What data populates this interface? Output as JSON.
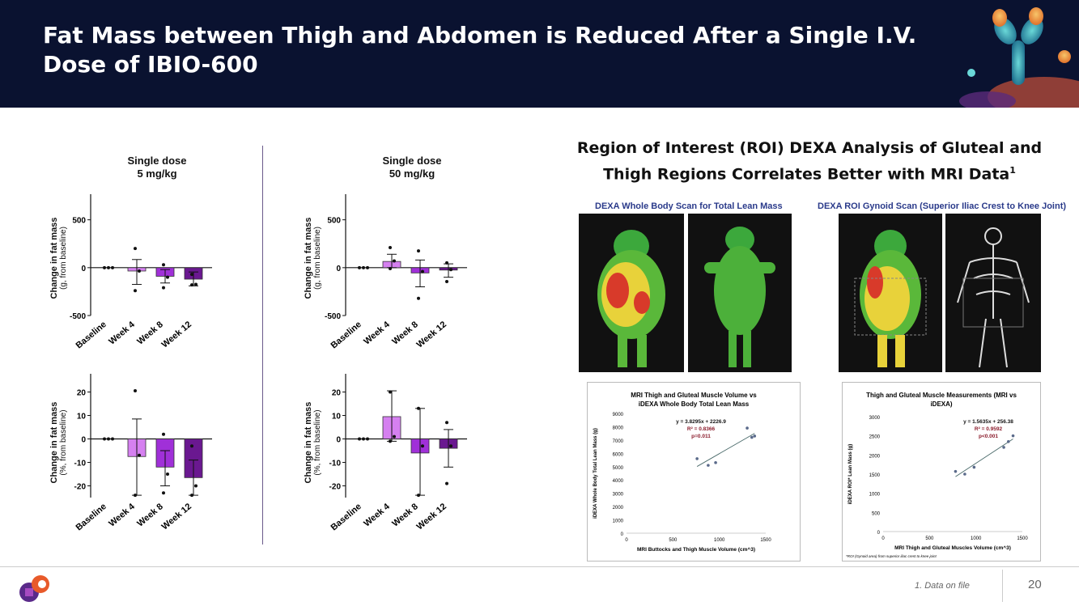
{
  "header": {
    "title": "Fat Mass between Thigh and Abdomen is Reduced After a Single I.V. Dose of IBIO-600"
  },
  "panels": {
    "left_title": "Single dose\n5 mg/kg",
    "right_title": "Single dose\n50 mg/kg",
    "ylabel_abs_1": "Change in fat mass",
    "ylabel_abs_2": "(g, from baseline)",
    "ylabel_pct_1": "Change in fat mass",
    "ylabel_pct_2": "(%, from baseline)"
  },
  "chart_data": [
    {
      "type": "bar",
      "title": "Single dose 5 mg/kg",
      "ylabel": "Change in fat mass (g, from baseline)",
      "categories": [
        "Baseline",
        "Week 4",
        "Week 8",
        "Week 12"
      ],
      "values": [
        0,
        -35,
        -90,
        -120
      ],
      "err": [
        [
          0,
          0
        ],
        [
          -175,
          85
        ],
        [
          -160,
          -20
        ],
        [
          -190,
          -45
        ]
      ],
      "points": [
        [
          0,
          0,
          0
        ],
        [
          200,
          -35,
          -240
        ],
        [
          30,
          -100,
          -210
        ],
        [
          -70,
          -175,
          -180
        ]
      ],
      "ylim": [
        -500,
        700
      ],
      "yticks": [
        -500,
        0,
        500
      ],
      "colors": [
        "#f0b0f8",
        "#d580f0",
        "#a030d8",
        "#6a1890"
      ]
    },
    {
      "type": "bar",
      "title": "Single dose 50 mg/kg",
      "ylabel": "Change in fat mass (g, from baseline)",
      "categories": [
        "Baseline",
        "Week 4",
        "Week 8",
        "Week 12"
      ],
      "values": [
        0,
        65,
        -55,
        -25
      ],
      "err": [
        [
          0,
          0
        ],
        [
          0,
          140
        ],
        [
          -200,
          80
        ],
        [
          -100,
          40
        ]
      ],
      "points": [
        [
          0,
          0,
          0
        ],
        [
          210,
          70,
          -10
        ],
        [
          175,
          -40,
          -320
        ],
        [
          50,
          -20,
          -145
        ]
      ],
      "ylim": [
        -500,
        700
      ],
      "yticks": [
        -500,
        0,
        500
      ],
      "colors": [
        "#f0b0f8",
        "#d580f0",
        "#a030d8",
        "#6a1890"
      ]
    },
    {
      "type": "bar",
      "title": "Single dose 5 mg/kg",
      "ylabel": "Change in fat mass (%, from baseline)",
      "categories": [
        "Baseline",
        "Week 4",
        "Week 8",
        "Week 12"
      ],
      "values": [
        0,
        -7.5,
        -12,
        -16.5
      ],
      "err": [
        [
          0,
          0
        ],
        [
          -24,
          8.5
        ],
        [
          -20,
          -5
        ],
        [
          -24,
          -9
        ]
      ],
      "points": [
        [
          0,
          0,
          0
        ],
        [
          20.5,
          -7,
          -24
        ],
        [
          2,
          -15,
          -23
        ],
        [
          -3,
          -20,
          -24
        ]
      ],
      "ylim": [
        -25,
        25
      ],
      "yticks": [
        -20,
        -10,
        0,
        10,
        20
      ],
      "colors": [
        "#f0b0f8",
        "#d580f0",
        "#a030d8",
        "#6a1890"
      ]
    },
    {
      "type": "bar",
      "title": "Single dose 50 mg/kg",
      "ylabel": "Change in fat mass (%, from baseline)",
      "categories": [
        "Baseline",
        "Week 4",
        "Week 8",
        "Week 12"
      ],
      "values": [
        0,
        9.5,
        -6,
        -4
      ],
      "err": [
        [
          0,
          0
        ],
        [
          -1,
          20.5
        ],
        [
          -24,
          13
        ],
        [
          -12,
          4
        ]
      ],
      "points": [
        [
          0,
          0,
          0
        ],
        [
          20,
          1,
          -1
        ],
        [
          13,
          -3,
          -24
        ],
        [
          7,
          -3,
          -19
        ]
      ],
      "ylim": [
        -25,
        25
      ],
      "yticks": [
        -20,
        -10,
        0,
        10,
        20
      ],
      "colors": [
        "#f0b0f8",
        "#d580f0",
        "#a030d8",
        "#6a1890"
      ]
    },
    {
      "type": "scatter",
      "title": "MRI Thigh and Gluteal Muscle Volume vs iDEXA Whole Body Total Lean Mass",
      "xlabel": "MRI Buttocks and Thigh Muscle Volume (cm^3)",
      "ylabel": "iDEXA Whole Body Total Lean Mass (g)",
      "x": [
        760,
        880,
        960,
        1300,
        1350,
        1380
      ],
      "y": [
        5600,
        5100,
        5300,
        7900,
        7200,
        7300
      ],
      "xlim": [
        0,
        1500
      ],
      "ylim": [
        0,
        9000
      ],
      "xticks": [
        0,
        500,
        1000,
        1500
      ],
      "yticks": [
        0,
        1000,
        2000,
        3000,
        4000,
        5000,
        6000,
        7000,
        8000,
        9000
      ],
      "annotations": [
        "y = 3.8295x + 2226.9",
        "R² = 0.8366",
        "p=0.011"
      ]
    },
    {
      "type": "scatter",
      "title": "Thigh and Gluteal Muscle Measurements (MRI vs iDEXA)",
      "xlabel": "MRI Thigh and Gluteal Muscles Volume (cm^3)",
      "ylabel": "iDEXA ROI* Lean Mass (g)",
      "x": [
        780,
        880,
        980,
        1300,
        1350,
        1400
      ],
      "y": [
        1570,
        1500,
        1680,
        2200,
        2350,
        2500
      ],
      "xlim": [
        0,
        1500
      ],
      "ylim": [
        0,
        3000
      ],
      "xticks": [
        0,
        500,
        1000,
        1500
      ],
      "yticks": [
        0,
        500,
        1000,
        1500,
        2000,
        2500,
        3000
      ],
      "annotations": [
        "y = 1.5635x + 256.38",
        "R² = 0.9592",
        "p<0.001"
      ],
      "footnote": "*ROI (Gynoid area) from superior iliac crest to knee joint"
    }
  ],
  "right": {
    "title": "Region of Interest (ROI) DEXA Analysis of Gluteal and Thigh Regions Correlates Better with MRI Data",
    "title_sup": "1",
    "scan1": "DEXA Whole Body Scan for Total Lean Mass",
    "scan2": "DEXA ROI Gynoid Scan (Superior Iliac Crest to Knee Joint)"
  },
  "footer": {
    "note": "1. Data on file",
    "page": "20"
  }
}
